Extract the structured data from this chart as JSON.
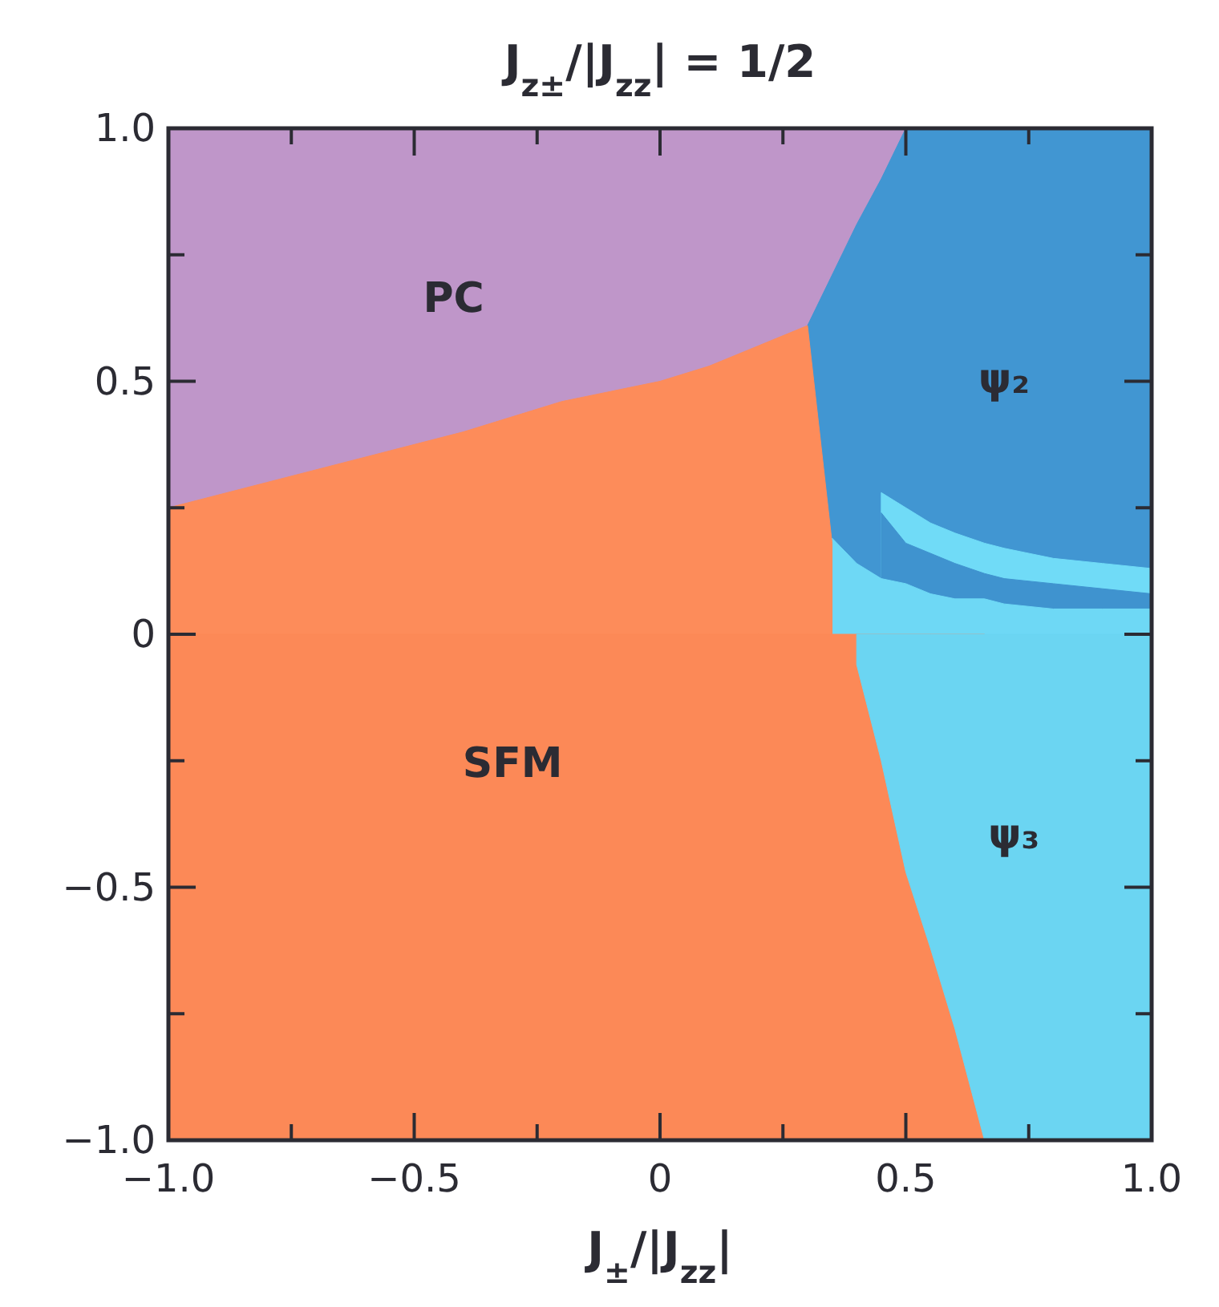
{
  "chart_data": {
    "type": "area",
    "title": "J$_{z±}$/|J$_{zz}$| = 1/2",
    "xlabel": "J$_{±}$/|J$_{zz}$|",
    "x": [
      -1,
      -0.8,
      -0.6,
      -0.4,
      -0.2,
      0,
      0.1,
      0.2,
      0.3,
      0.35,
      0.4,
      0.45,
      0.5,
      0.55,
      0.6,
      0.66,
      0.7,
      0.8,
      0.9,
      1
    ],
    "series": [
      {
        "color": "#bf96c9",
        "values": [
          1,
          1,
          1,
          1,
          1,
          1,
          1,
          1,
          1,
          1,
          1,
          1,
          1,
          null,
          null,
          null,
          null,
          null,
          null,
          null
        ]
      },
      {
        "color": "#4196d2",
        "values": [
          null,
          null,
          null,
          null,
          null,
          null,
          null,
          null,
          0.61,
          0.71,
          0.81,
          0.9,
          1,
          1,
          1,
          1,
          1,
          1,
          1,
          1
        ]
      },
      {
        "color": "#70dbf7",
        "values": [
          null,
          null,
          null,
          null,
          null,
          null,
          null,
          null,
          null,
          null,
          null,
          0.28,
          0.25,
          0.22,
          0.2,
          0.18,
          0.17,
          0.15,
          0.14,
          0.13
        ]
      },
      {
        "color": "#3f93cf",
        "values": [
          null,
          null,
          null,
          null,
          null,
          null,
          null,
          null,
          null,
          null,
          null,
          0.24,
          0.18,
          0.16,
          0.14,
          0.12,
          0.11,
          0.1,
          0.09,
          0.08
        ]
      },
      {
        "color": "#6ed8f5",
        "values": [
          null,
          null,
          null,
          null,
          null,
          null,
          null,
          null,
          null,
          0.19,
          0.14,
          0.11,
          0.1,
          0.08,
          0.07,
          0.07,
          0.06,
          0.05,
          0.05,
          0.05
        ]
      },
      {
        "color": "#fd8c5a",
        "values": [
          0.25,
          0.3,
          0.35,
          0.4,
          0.46,
          0.5,
          0.53,
          0.57,
          0.61,
          0.18,
          null,
          null,
          null,
          null,
          null,
          null,
          null,
          null,
          null,
          null
        ]
      },
      {
        "color": "#fc8957",
        "values": [
          -1,
          -1,
          -1,
          -1,
          -1,
          -1,
          -1,
          -1,
          -1,
          -1,
          -1,
          -1,
          -1,
          -1,
          -1,
          -1,
          null,
          null,
          null,
          null
        ]
      },
      {
        "color": "#6bd5f2",
        "values": [
          null,
          null,
          null,
          null,
          null,
          null,
          null,
          null,
          null,
          null,
          -0.06,
          -0.25,
          -0.47,
          -0.62,
          -0.78,
          -1,
          -1,
          -1,
          -1,
          -1
        ]
      }
    ],
    "xlim": [
      -1,
      1
    ],
    "ylim": [
      -1,
      1
    ],
    "xticks": [
      {
        "value": -1,
        "label": "−1.0"
      },
      {
        "value": -0.75,
        "label": null
      },
      {
        "value": -0.5,
        "label": "−0.5"
      },
      {
        "value": -0.25,
        "label": null
      },
      0,
      {
        "value": 0.25,
        "label": null
      },
      {
        "value": 0.5,
        "label": "0.5"
      },
      {
        "value": 0.75,
        "label": null
      },
      {
        "value": 1,
        "label": "1.0"
      }
    ],
    "yticks": [
      {
        "value": -1,
        "label": "−1.0"
      },
      {
        "value": -0.75,
        "label": null
      },
      {
        "value": -0.5,
        "label": "−0.5"
      },
      {
        "value": -0.25,
        "label": null
      },
      0,
      {
        "value": 0.25,
        "label": null
      },
      {
        "value": 0.5,
        "label": "0.5"
      },
      {
        "value": 0.75,
        "label": null
      },
      {
        "value": 1,
        "label": "1.0"
      }
    ],
    "annotations": [
      "PC",
      "SFM",
      "ψ₂",
      "ψ₃"
    ],
    "grid": false
  }
}
